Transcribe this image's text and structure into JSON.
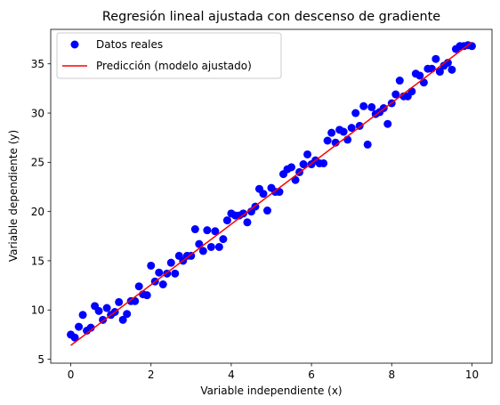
{
  "chart_data": {
    "type": "scatter",
    "title": "Regresión lineal ajustada con descenso de gradiente",
    "xlabel": "Variable independiente (x)",
    "ylabel": "Variable dependiente (y)",
    "xlim": [
      -0.5,
      10.5
    ],
    "ylim": [
      4.6,
      38.5
    ],
    "xticks": [
      0,
      2,
      4,
      6,
      8,
      10
    ],
    "xtick_labels": [
      "0",
      "2",
      "4",
      "6",
      "8",
      "10"
    ],
    "yticks": [
      5,
      10,
      15,
      20,
      25,
      30,
      35
    ],
    "ytick_labels": [
      "5",
      "10",
      "15",
      "20",
      "25",
      "30",
      "35"
    ],
    "grid": false,
    "legend_position": "upper left",
    "series": [
      {
        "name": "Datos reales",
        "kind": "scatter",
        "color": "#0000ff",
        "x": [
          0.0,
          0.1,
          0.2,
          0.3,
          0.4,
          0.5,
          0.6,
          0.7,
          0.8,
          0.9,
          1.0,
          1.1,
          1.2,
          1.3,
          1.4,
          1.5,
          1.6,
          1.7,
          1.8,
          1.9,
          2.0,
          2.1,
          2.2,
          2.3,
          2.4,
          2.5,
          2.6,
          2.7,
          2.8,
          2.9,
          3.0,
          3.1,
          3.2,
          3.3,
          3.4,
          3.5,
          3.6,
          3.7,
          3.8,
          3.9,
          4.0,
          4.1,
          4.2,
          4.3,
          4.4,
          4.5,
          4.6,
          4.7,
          4.8,
          4.9,
          5.0,
          5.1,
          5.2,
          5.3,
          5.4,
          5.5,
          5.6,
          5.7,
          5.8,
          5.9,
          6.0,
          6.1,
          6.2,
          6.3,
          6.4,
          6.5,
          6.6,
          6.7,
          6.8,
          6.9,
          7.0,
          7.1,
          7.2,
          7.3,
          7.4,
          7.5,
          7.6,
          7.7,
          7.8,
          7.9,
          8.0,
          8.1,
          8.2,
          8.3,
          8.4,
          8.5,
          8.6,
          8.7,
          8.8,
          8.9,
          9.0,
          9.1,
          9.2,
          9.3,
          9.4,
          9.5,
          9.6,
          9.7,
          9.8,
          9.9,
          10.0
        ],
        "y": [
          7.5,
          7.2,
          8.3,
          9.5,
          7.9,
          8.2,
          10.4,
          9.9,
          9.0,
          10.2,
          9.5,
          9.8,
          10.8,
          9.0,
          9.6,
          10.9,
          10.9,
          12.4,
          11.6,
          11.5,
          14.5,
          12.9,
          13.8,
          12.6,
          13.7,
          14.8,
          13.7,
          15.5,
          15.0,
          15.5,
          15.5,
          18.2,
          16.7,
          16.0,
          18.1,
          16.4,
          18.0,
          16.4,
          17.2,
          19.1,
          19.8,
          19.6,
          19.6,
          19.8,
          18.9,
          20.0,
          20.5,
          22.3,
          21.8,
          20.1,
          22.4,
          22.0,
          22.0,
          23.8,
          24.3,
          24.5,
          23.2,
          24.0,
          24.8,
          25.8,
          24.8,
          25.2,
          24.9,
          24.9,
          27.2,
          28.0,
          27.0,
          28.3,
          28.1,
          27.3,
          28.5,
          30.0,
          28.7,
          30.7,
          26.8,
          30.6,
          29.9,
          30.1,
          30.5,
          28.9,
          31.0,
          31.9,
          33.3,
          31.7,
          31.7,
          32.2,
          34.0,
          33.8,
          33.1,
          34.5,
          34.5,
          35.5,
          34.2,
          34.8,
          35.1,
          34.4,
          36.5,
          36.8,
          36.8,
          36.9,
          36.8
        ]
      },
      {
        "name": "Predicción (modelo ajustado)",
        "kind": "line",
        "color": "#ff0000",
        "x": [
          0,
          10
        ],
        "y": [
          6.4,
          37.2
        ]
      }
    ]
  }
}
